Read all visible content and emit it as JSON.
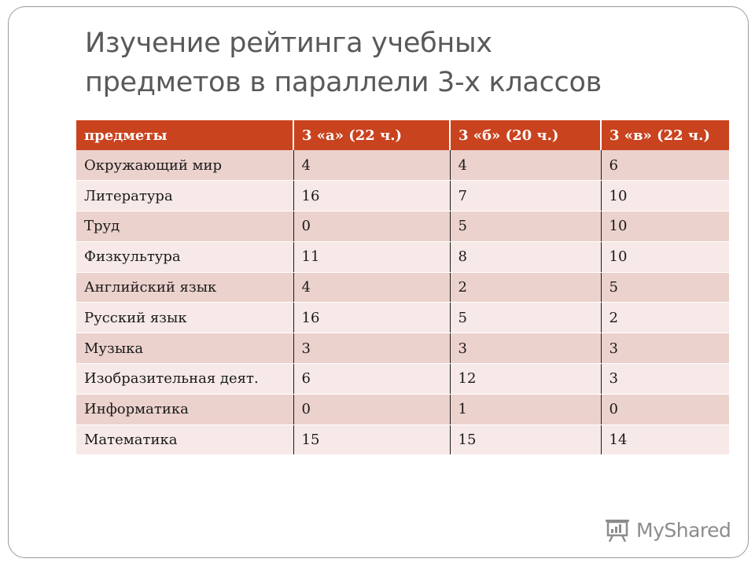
{
  "title": {
    "line1": "Изучение рейтинга учебных",
    "line2": "предметов в параллели 3-х классов"
  },
  "table": {
    "headers": [
      "предметы",
      "3 «а»  (22 ч.)",
      "3 «б»  (20 ч.)",
      "3 «в»  (22 ч.)"
    ],
    "rows": [
      [
        "Окружающий мир",
        "4",
        "4",
        "6"
      ],
      [
        "Литература",
        "16",
        "7",
        "10"
      ],
      [
        "Труд",
        "0",
        "5",
        "10"
      ],
      [
        "Физкультура",
        "11",
        "8",
        "10"
      ],
      [
        "Английский язык",
        "4",
        "2",
        "5"
      ],
      [
        "Русский язык",
        "16",
        "5",
        "2"
      ],
      [
        "Музыка",
        "3",
        "3",
        "3"
      ],
      [
        "Изобразительная деят.",
        "6",
        "12",
        "3"
      ],
      [
        "Информатика",
        "0",
        "1",
        "0"
      ],
      [
        "Математика",
        "15",
        "15",
        "14"
      ]
    ]
  },
  "watermark": {
    "text": "MyShared",
    "icon": "presentation-board-icon"
  },
  "colors": {
    "header_bg": "#c9431f",
    "row_odd": "#ecd2cd",
    "row_even": "#f6e9e7",
    "title": "#595959"
  }
}
